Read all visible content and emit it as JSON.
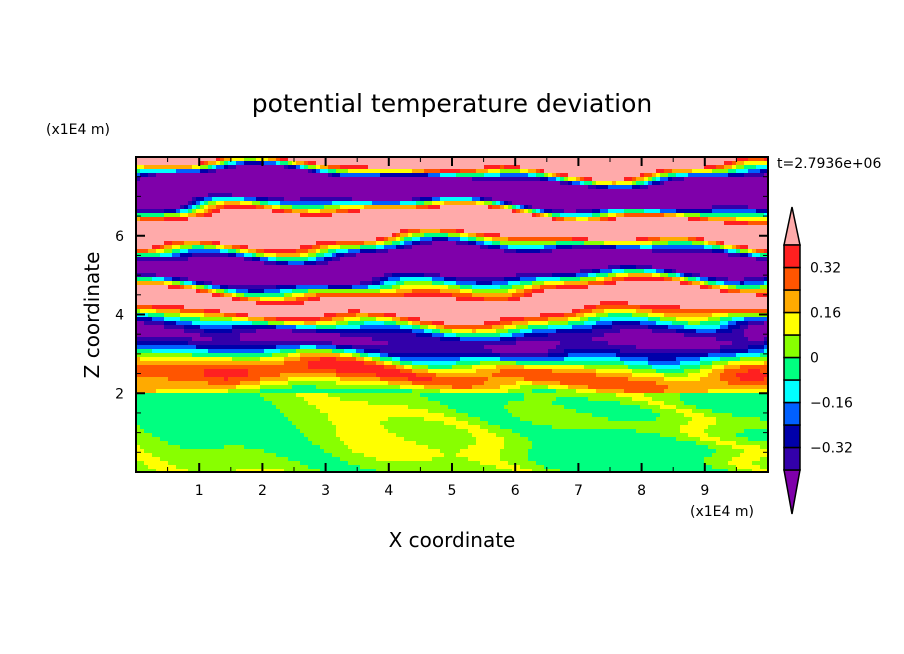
{
  "chart_data": {
    "type": "heatmap",
    "title": "potential temperature deviation",
    "xlabel": "X coordinate",
    "ylabel": "Z coordinate",
    "x_unit": "(x1E4 m)",
    "y_unit": "(x1E4 m)",
    "time_label": "t=2.7936e+06",
    "xlim": [
      0,
      10
    ],
    "ylim": [
      0,
      8
    ],
    "x_ticks": [
      1,
      2,
      3,
      4,
      5,
      6,
      7,
      8,
      9
    ],
    "y_ticks": [
      2,
      4,
      6
    ],
    "levels": [
      -0.4,
      -0.32,
      -0.24,
      -0.16,
      -0.08,
      0,
      0.08,
      0.16,
      0.24,
      0.32,
      0.4
    ],
    "colorbar_labels": [
      "0.32",
      "0.16",
      "0",
      "−0.16",
      "−0.32"
    ],
    "colorbar_label_values": [
      0.32,
      0.16,
      0,
      -0.16,
      -0.32
    ],
    "colors": [
      "#7f00aa",
      "#3300aa",
      "#0000aa",
      "#0060ff",
      "#00ffff",
      "#00ff80",
      "#88ff00",
      "#ffff00",
      "#ffaa00",
      "#ff5500",
      "#ff2020",
      "#ffaaaa"
    ],
    "description_of_field": "banded layers above z=2 with amplitude increasing upward; weak near-zero eddies below z=2"
  }
}
